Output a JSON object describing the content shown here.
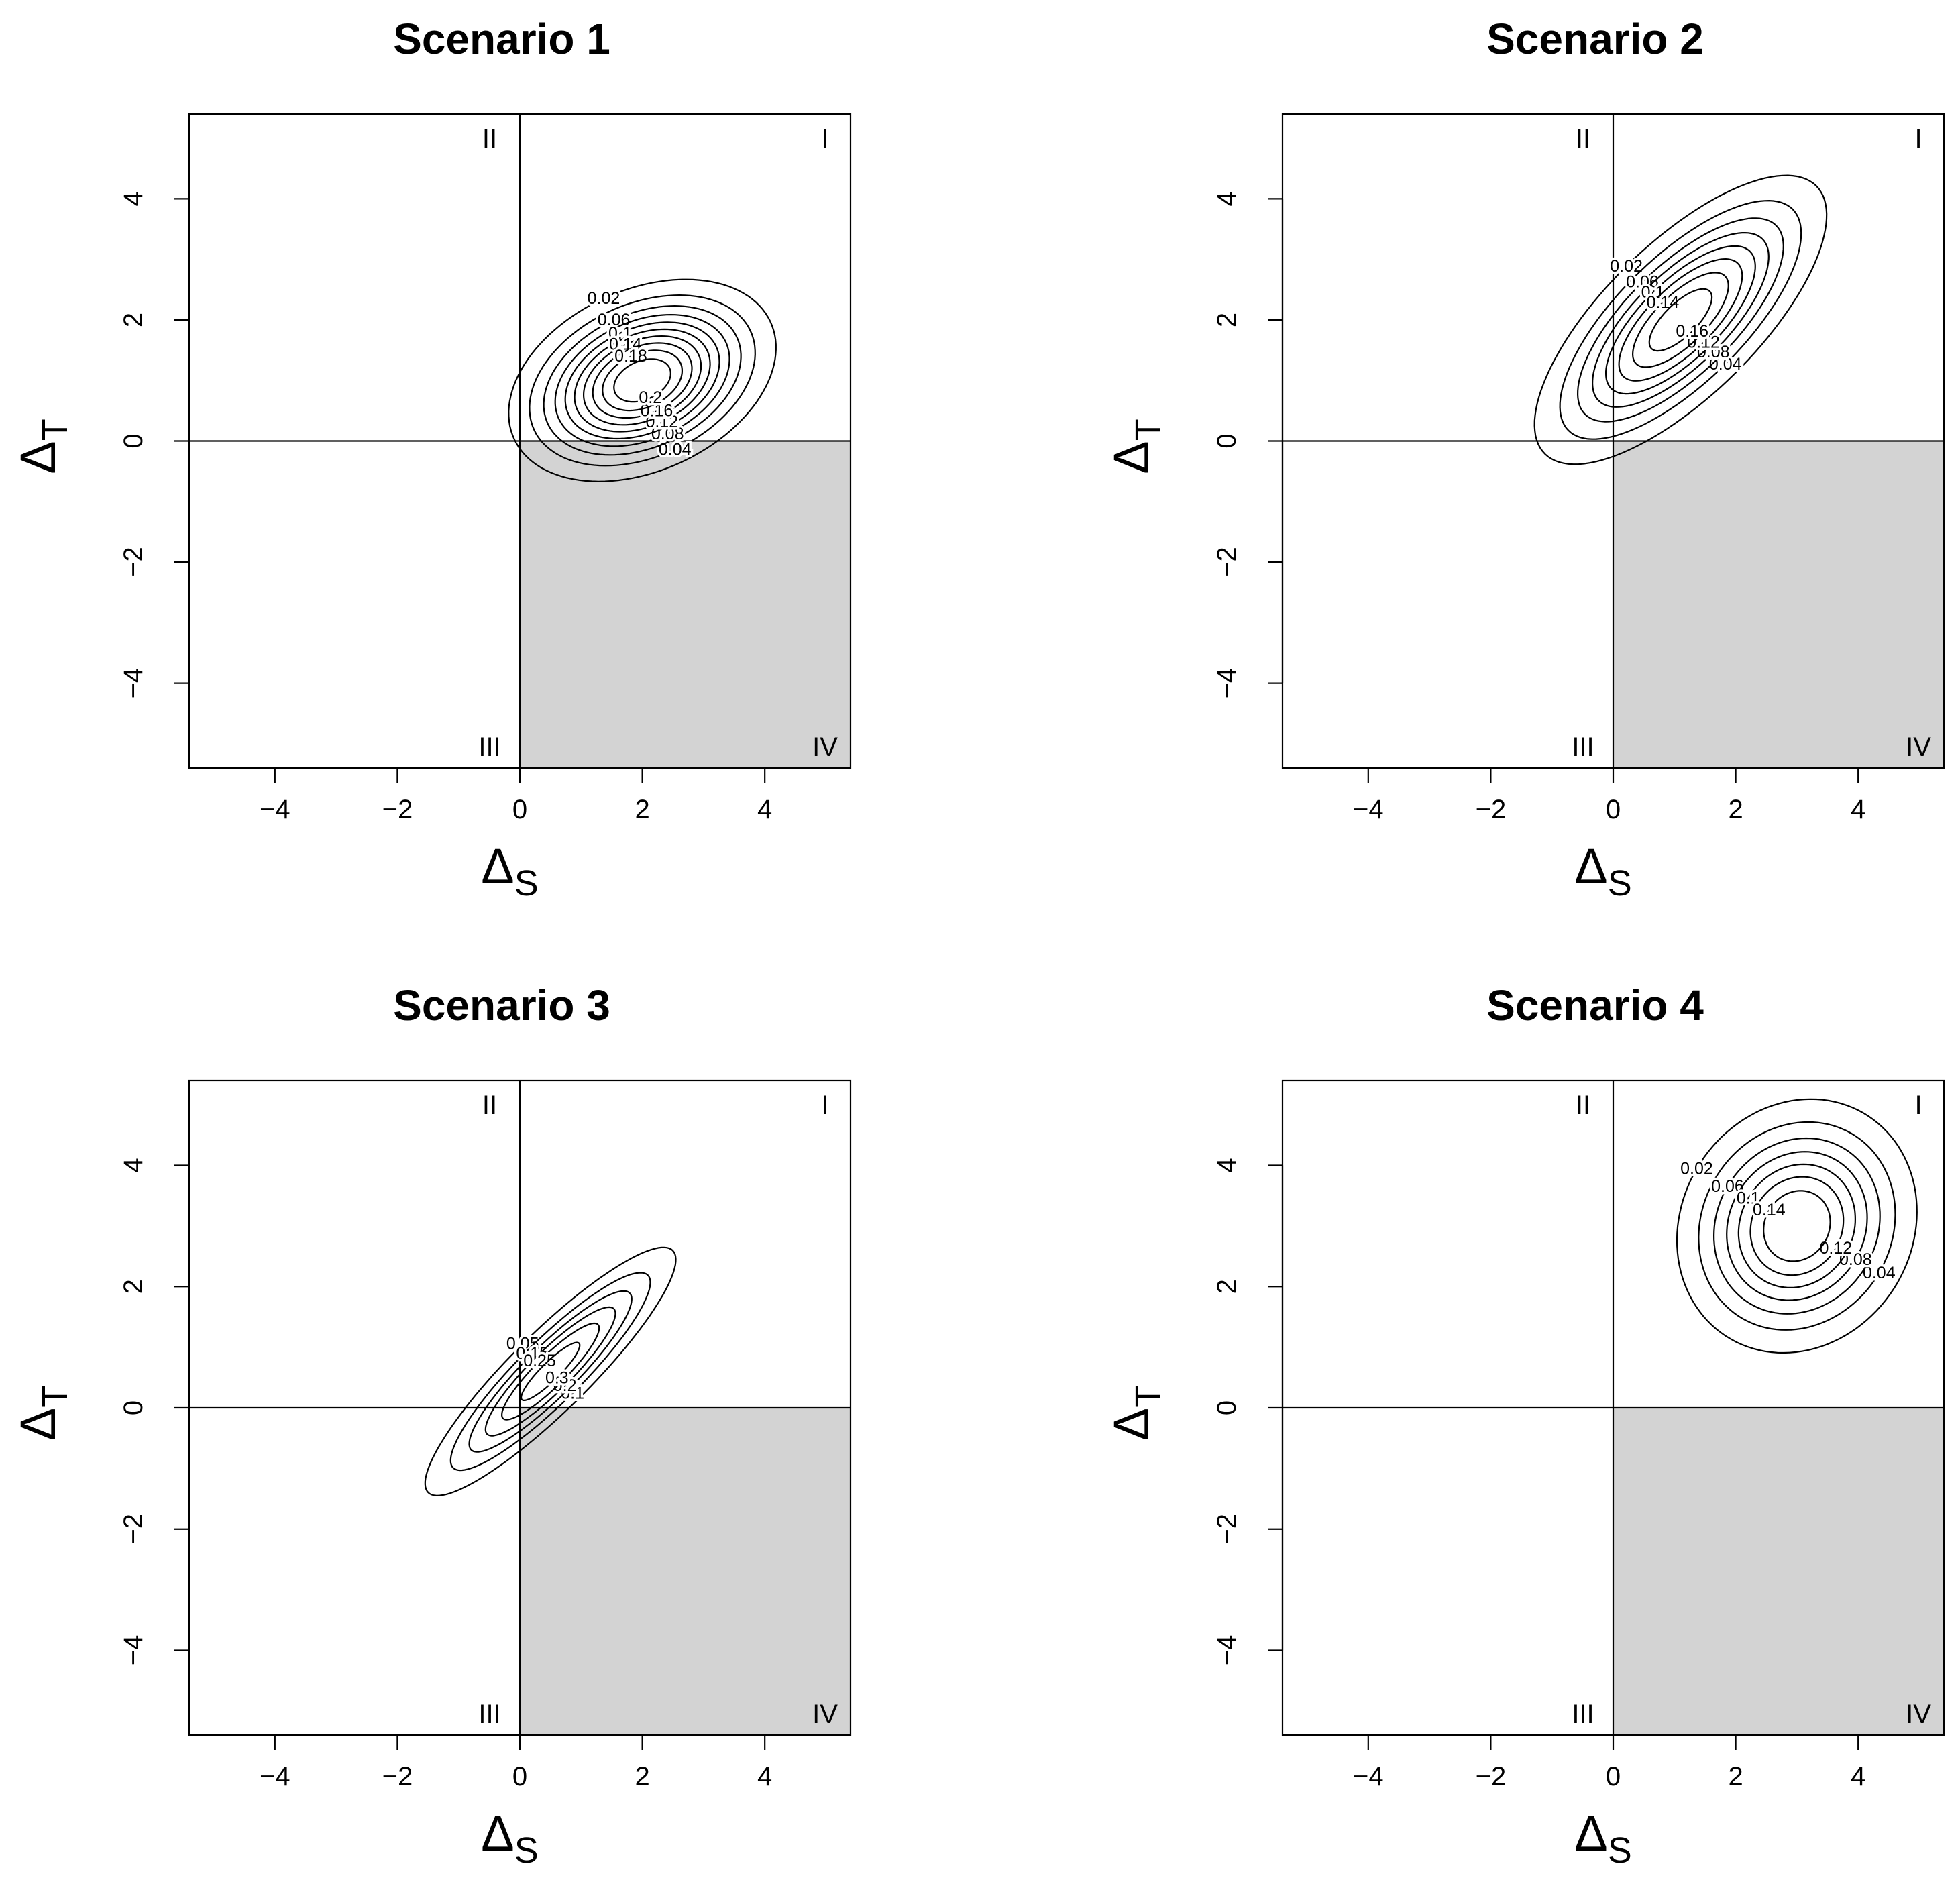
{
  "chart_data": [
    {
      "type": "contour",
      "title": "Scenario 1",
      "xlabel": "Δ",
      "xlabel_sub": "S",
      "ylabel": "Δ",
      "ylabel_sub": "T",
      "xlim": [
        -5.4,
        5.4
      ],
      "ylim": [
        -5.4,
        5.4
      ],
      "xticks": [
        "−4",
        "−2",
        "0",
        "2",
        "4"
      ],
      "yticks": [
        "−4",
        "−2",
        "0",
        "2",
        "4"
      ],
      "quadrants": [
        "I",
        "II",
        "III",
        "IV"
      ],
      "shaded_quadrant": "IV",
      "distribution": {
        "mean": [
          2,
          1
        ],
        "sd": [
          1.05,
          0.68
        ],
        "rotation_deg": 25
      },
      "contour_levels": [
        0.02,
        0.04,
        0.06,
        0.08,
        0.1,
        0.12,
        0.14,
        0.16,
        0.18,
        0.2
      ],
      "contour_labels": [
        "0.02",
        "0.04",
        "0.06",
        "0.08",
        "0.1",
        "0.12",
        "0.14",
        "0.16",
        "0.18",
        "0.2"
      ]
    },
    {
      "type": "contour",
      "title": "Scenario 2",
      "xlabel": "Δ",
      "xlabel_sub": "S",
      "ylabel": "Δ",
      "ylabel_sub": "T",
      "xlim": [
        -5.4,
        5.4
      ],
      "ylim": [
        -5.4,
        5.4
      ],
      "xticks": [
        "−4",
        "−2",
        "0",
        "2",
        "4"
      ],
      "yticks": [
        "−4",
        "−2",
        "0",
        "2",
        "4"
      ],
      "quadrants": [
        "I",
        "II",
        "III",
        "IV"
      ],
      "shaded_quadrant": "IV",
      "distribution": {
        "mean": [
          1.1,
          2
        ],
        "sd": [
          1.5,
          0.6
        ],
        "rotation_deg": 45
      },
      "contour_levels": [
        0.02,
        0.04,
        0.06,
        0.08,
        0.1,
        0.12,
        0.14,
        0.16
      ],
      "contour_labels": [
        "0.02",
        "0.04",
        "0.06",
        "0.08",
        "0.1",
        "0.12",
        "0.14",
        "0.16"
      ]
    },
    {
      "type": "contour",
      "title": "Scenario 3",
      "xlabel": "Δ",
      "xlabel_sub": "S",
      "ylabel": "Δ",
      "ylabel_sub": "T",
      "xlim": [
        -5.4,
        5.4
      ],
      "ylim": [
        -5.4,
        5.4
      ],
      "xticks": [
        "−4",
        "−2",
        "0",
        "2",
        "4"
      ],
      "yticks": [
        "−4",
        "−2",
        "0",
        "2",
        "4"
      ],
      "quadrants": [
        "I",
        "II",
        "III",
        "IV"
      ],
      "shaded_quadrant": "IV",
      "distribution": {
        "mean": [
          0.5,
          0.6
        ],
        "sd": [
          1.45,
          0.33
        ],
        "rotation_deg": 45
      },
      "contour_levels": [
        0.05,
        0.1,
        0.15,
        0.2,
        0.25,
        0.3
      ],
      "contour_labels": [
        "0.05",
        "0.1",
        "0.15",
        "0.2",
        "0.25",
        "0.3"
      ]
    },
    {
      "type": "contour",
      "title": "Scenario 4",
      "xlabel": "Δ",
      "xlabel_sub": "S",
      "ylabel": "Δ",
      "ylabel_sub": "T",
      "xlim": [
        -5.4,
        5.4
      ],
      "ylim": [
        -5.4,
        5.4
      ],
      "xticks": [
        "−4",
        "−2",
        "0",
        "2",
        "4"
      ],
      "yticks": [
        "−4",
        "−2",
        "0",
        "2",
        "4"
      ],
      "quadrants": [
        "I",
        "II",
        "III",
        "IV"
      ],
      "shaded_quadrant": "IV",
      "distribution": {
        "mean": [
          3,
          3
        ],
        "sd": [
          1.05,
          0.92
        ],
        "rotation_deg": 60
      },
      "contour_levels": [
        0.02,
        0.04,
        0.06,
        0.08,
        0.1,
        0.12,
        0.14
      ],
      "contour_labels": [
        "0.02",
        "0.04",
        "0.06",
        "0.08",
        "0.1",
        "0.12",
        "0.14"
      ]
    }
  ],
  "colors": {
    "shade": "#d3d3d3",
    "line": "#000000",
    "background": "#ffffff"
  }
}
